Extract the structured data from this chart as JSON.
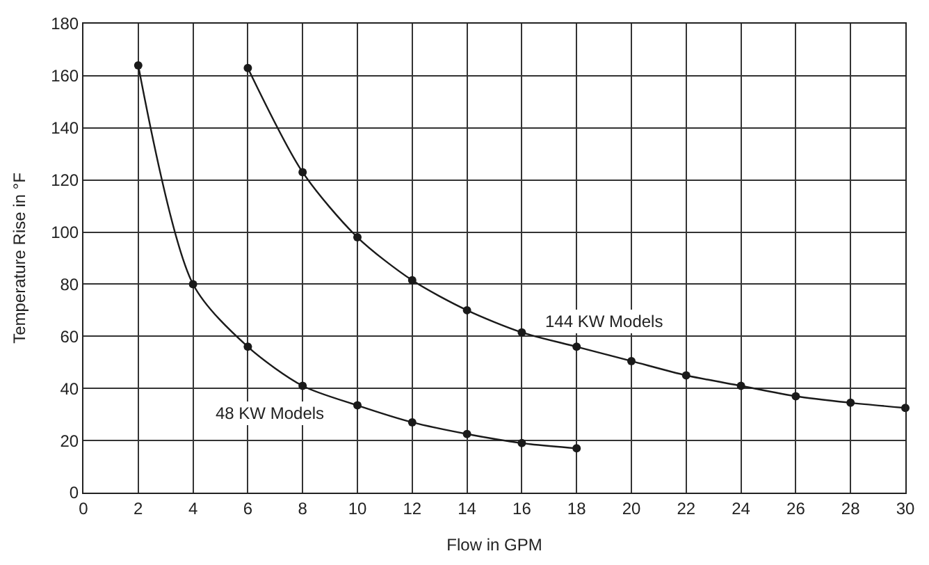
{
  "chart_data": {
    "type": "line",
    "xlabel": "Flow in GPM",
    "ylabel": "Temperature Rise in °F",
    "xlim": [
      0,
      30
    ],
    "xticks": [
      0,
      2,
      4,
      6,
      8,
      10,
      12,
      14,
      16,
      18,
      20,
      22,
      24,
      26,
      28,
      30
    ],
    "ylim": [
      0,
      180
    ],
    "yticks": [
      0,
      20,
      40,
      60,
      80,
      100,
      120,
      140,
      160,
      180
    ],
    "grid": true,
    "legend": false,
    "marker": "circle",
    "line_style": "solid",
    "series": [
      {
        "name": "48 KW Models",
        "color": "#1a1a1a",
        "x": [
          2,
          4,
          6,
          8,
          10,
          12,
          14,
          16,
          18
        ],
        "values": [
          164,
          80,
          56,
          41,
          33.5,
          27,
          22.5,
          19,
          17
        ]
      },
      {
        "name": "144 KW Models",
        "color": "#1a1a1a",
        "x": [
          6,
          8,
          10,
          12,
          14,
          16,
          18,
          20,
          22,
          24,
          26,
          28,
          30
        ],
        "values": [
          163,
          123,
          98,
          81.5,
          70,
          61.5,
          56,
          50.5,
          45,
          41,
          37,
          34.5,
          32.5
        ]
      }
    ]
  }
}
